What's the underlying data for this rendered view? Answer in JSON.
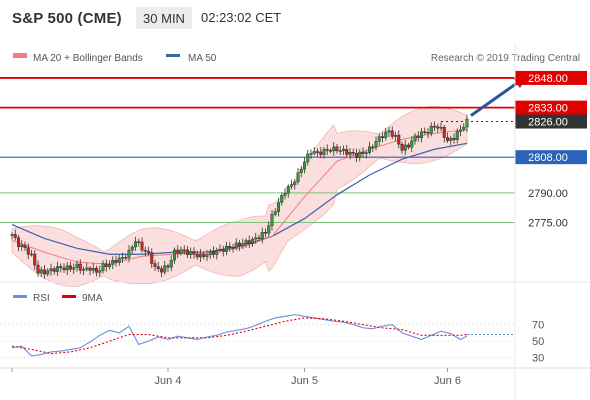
{
  "header": {
    "symbol": "S&P 500 (CME)",
    "interval": "30 MIN",
    "time": "02:23:02 CET"
  },
  "legend": {
    "ma20": "MA 20 + Bollinger Bands",
    "ma50": "MA 50",
    "credit": "Research © 2019 Trading Central",
    "rsi": "RSI",
    "ma9": "9MA"
  },
  "colors": {
    "resistance": "#e00000",
    "support": "#2a63b8",
    "fib": "#7ac47a",
    "current": "#333333",
    "arrow": "#2a5496",
    "bollinger_fill": "#fbdede",
    "ma20": "#f08080",
    "ma50": "#3b63a8",
    "rsi": "#6b8fe0",
    "ma9": "#e00000",
    "candle_up": "#2e9e3e",
    "candle_down": "#c82828"
  },
  "chart_data": [
    {
      "type": "line",
      "title": "S&P 500 (CME) 30 MIN",
      "x_tick_labels": [
        "Jun 4",
        "Jun 5",
        "Jun 6"
      ],
      "ylim": [
        2746,
        2852
      ],
      "price_levels": [
        {
          "value": 2848.0,
          "label": "2848.00",
          "kind": "resistance"
        },
        {
          "value": 2833.0,
          "label": "2833.00",
          "kind": "resistance"
        },
        {
          "value": 2826.0,
          "label": "2826.00",
          "kind": "current"
        },
        {
          "value": 2808.0,
          "label": "2808.00",
          "kind": "support"
        },
        {
          "value": 2790.0,
          "label": "2790.00",
          "kind": "level"
        },
        {
          "value": 2775.0,
          "label": "2775.00",
          "kind": "level"
        }
      ],
      "price_path": [
        [
          0,
          2769
        ],
        [
          2,
          2764
        ],
        [
          4,
          2762
        ],
        [
          6,
          2758
        ],
        [
          8,
          2750
        ],
        [
          10,
          2750
        ],
        [
          12,
          2751
        ],
        [
          14,
          2752
        ],
        [
          16,
          2752
        ],
        [
          18,
          2752
        ],
        [
          20,
          2753
        ],
        [
          22,
          2751
        ],
        [
          24,
          2752
        ],
        [
          26,
          2750
        ],
        [
          28,
          2753
        ],
        [
          30,
          2754
        ],
        [
          32,
          2756
        ],
        [
          34,
          2757
        ],
        [
          36,
          2760
        ],
        [
          38,
          2766
        ],
        [
          40,
          2762
        ],
        [
          42,
          2759
        ],
        [
          44,
          2752
        ],
        [
          46,
          2751
        ],
        [
          48,
          2753
        ],
        [
          50,
          2760
        ],
        [
          52,
          2761
        ],
        [
          54,
          2760
        ],
        [
          56,
          2759
        ],
        [
          58,
          2758
        ],
        [
          60,
          2759
        ],
        [
          62,
          2760
        ],
        [
          64,
          2761
        ],
        [
          66,
          2762
        ],
        [
          68,
          2763
        ],
        [
          70,
          2764
        ],
        [
          72,
          2765
        ],
        [
          74,
          2766
        ],
        [
          76,
          2768
        ],
        [
          78,
          2770
        ],
        [
          80,
          2778
        ],
        [
          82,
          2785
        ],
        [
          84,
          2791
        ],
        [
          86,
          2794
        ],
        [
          88,
          2799
        ],
        [
          90,
          2806
        ],
        [
          92,
          2811
        ],
        [
          94,
          2810
        ],
        [
          96,
          2811
        ],
        [
          98,
          2812
        ],
        [
          100,
          2812
        ],
        [
          102,
          2811
        ],
        [
          104,
          2810
        ],
        [
          106,
          2809
        ],
        [
          108,
          2810
        ],
        [
          110,
          2812
        ],
        [
          112,
          2816
        ],
        [
          114,
          2819
        ],
        [
          116,
          2821
        ],
        [
          118,
          2818
        ],
        [
          120,
          2812
        ],
        [
          122,
          2814
        ],
        [
          124,
          2818
        ],
        [
          126,
          2820
        ],
        [
          128,
          2821
        ],
        [
          130,
          2824
        ],
        [
          132,
          2822
        ],
        [
          134,
          2816
        ],
        [
          136,
          2818
        ],
        [
          138,
          2822
        ],
        [
          140,
          2826
        ]
      ],
      "ma50": [
        [
          0,
          2774
        ],
        [
          10,
          2767
        ],
        [
          20,
          2762
        ],
        [
          30,
          2759
        ],
        [
          40,
          2759
        ],
        [
          50,
          2760
        ],
        [
          60,
          2760
        ],
        [
          70,
          2763
        ],
        [
          80,
          2768
        ],
        [
          90,
          2777
        ],
        [
          100,
          2789
        ],
        [
          110,
          2799
        ],
        [
          120,
          2807
        ],
        [
          130,
          2812
        ],
        [
          140,
          2815
        ]
      ],
      "ma20": [
        [
          0,
          2766
        ],
        [
          10,
          2760
        ],
        [
          20,
          2755
        ],
        [
          30,
          2754
        ],
        [
          40,
          2758
        ],
        [
          50,
          2759
        ],
        [
          60,
          2760
        ],
        [
          70,
          2762
        ],
        [
          80,
          2768
        ],
        [
          90,
          2788
        ],
        [
          100,
          2806
        ],
        [
          110,
          2812
        ],
        [
          120,
          2817
        ],
        [
          130,
          2820
        ],
        [
          140,
          2822
        ]
      ],
      "x_ticks": [
        [
          48,
          "Jun 4"
        ],
        [
          90,
          "Jun 5"
        ],
        [
          134,
          "Jun 6"
        ]
      ],
      "forecast_arrow": {
        "from": [
          140,
          2829
        ],
        "to": [
          158,
          2848
        ]
      }
    },
    {
      "type": "line",
      "title": "RSI",
      "ylim": [
        20,
        90
      ],
      "y_tick_labels": [
        "70",
        "50",
        "30"
      ],
      "series": [
        {
          "name": "RSI",
          "values": [
            [
              0,
              42
            ],
            [
              3,
              44
            ],
            [
              6,
              32
            ],
            [
              9,
              34
            ],
            [
              12,
              37
            ],
            [
              15,
              38
            ],
            [
              18,
              40
            ],
            [
              21,
              42
            ],
            [
              24,
              49
            ],
            [
              27,
              57
            ],
            [
              30,
              63
            ],
            [
              33,
              60
            ],
            [
              36,
              68
            ],
            [
              39,
              46
            ],
            [
              42,
              50
            ],
            [
              45,
              55
            ],
            [
              48,
              52
            ],
            [
              51,
              56
            ],
            [
              54,
              54
            ],
            [
              57,
              52
            ],
            [
              60,
              55
            ],
            [
              63,
              57
            ],
            [
              66,
              61
            ],
            [
              69,
              63
            ],
            [
              72,
              65
            ],
            [
              75,
              69
            ],
            [
              78,
              74
            ],
            [
              81,
              78
            ],
            [
              84,
              80
            ],
            [
              87,
              82
            ],
            [
              90,
              80
            ],
            [
              93,
              78
            ],
            [
              96,
              76
            ],
            [
              99,
              74
            ],
            [
              102,
              73
            ],
            [
              105,
              70
            ],
            [
              108,
              66
            ],
            [
              111,
              65
            ],
            [
              114,
              68
            ],
            [
              117,
              70
            ],
            [
              120,
              60
            ],
            [
              123,
              56
            ],
            [
              126,
              52
            ],
            [
              129,
              57
            ],
            [
              132,
              62
            ],
            [
              135,
              59
            ],
            [
              138,
              52
            ],
            [
              140,
              56
            ]
          ]
        },
        {
          "name": "9MA",
          "values": [
            [
              0,
              44
            ],
            [
              6,
              40
            ],
            [
              12,
              35
            ],
            [
              18,
              37
            ],
            [
              24,
              42
            ],
            [
              30,
              50
            ],
            [
              36,
              58
            ],
            [
              42,
              58
            ],
            [
              48,
              54
            ],
            [
              54,
              54
            ],
            [
              60,
              54
            ],
            [
              66,
              57
            ],
            [
              72,
              62
            ],
            [
              78,
              68
            ],
            [
              84,
              74
            ],
            [
              90,
              78
            ],
            [
              96,
              77
            ],
            [
              102,
              74
            ],
            [
              108,
              70
            ],
            [
              114,
              66
            ],
            [
              120,
              64
            ],
            [
              126,
              57
            ],
            [
              132,
              57
            ],
            [
              138,
              57
            ],
            [
              140,
              58
            ]
          ]
        }
      ],
      "reference_level": 58
    }
  ]
}
